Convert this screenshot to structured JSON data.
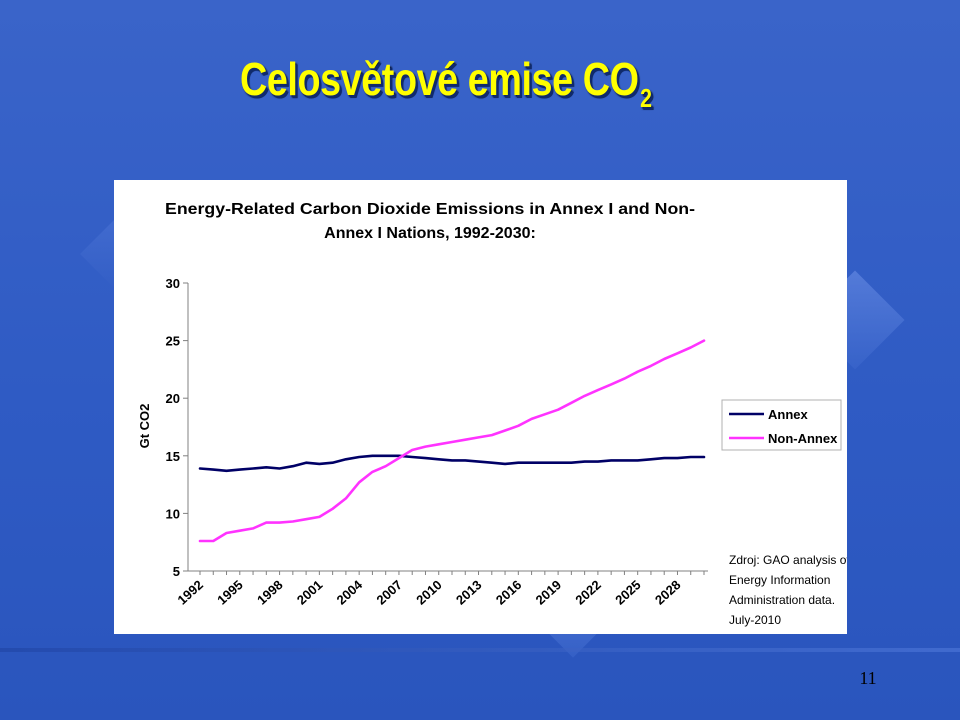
{
  "slide": {
    "title_main": "Celosvětové emise CO",
    "title_sub": "2",
    "page_number": "11"
  },
  "chart_data": {
    "type": "line",
    "title_line1": "Energy-Related Carbon Dioxide Emissions in Annex I and Non-",
    "title_line2": "Annex I Nations, 1992-2030:",
    "ylabel": "Gt CO2",
    "xlabel": "",
    "ylim": [
      5,
      30
    ],
    "yticks": [
      5,
      10,
      15,
      20,
      25,
      30
    ],
    "xtick_labels": [
      "1992",
      "1995",
      "1998",
      "2001",
      "2004",
      "2007",
      "2010",
      "2013",
      "2016",
      "2019",
      "2022",
      "2025",
      "2028"
    ],
    "x": [
      1992,
      1993,
      1994,
      1995,
      1996,
      1997,
      1998,
      1999,
      2000,
      2001,
      2002,
      2003,
      2004,
      2005,
      2006,
      2007,
      2008,
      2009,
      2010,
      2011,
      2012,
      2013,
      2014,
      2015,
      2016,
      2017,
      2018,
      2019,
      2020,
      2021,
      2022,
      2023,
      2024,
      2025,
      2026,
      2027,
      2028,
      2029,
      2030
    ],
    "series": [
      {
        "name": "Annex",
        "color": "#000066",
        "values": [
          13.9,
          13.8,
          13.7,
          13.8,
          13.9,
          14.0,
          13.9,
          14.1,
          14.4,
          14.3,
          14.4,
          14.7,
          14.9,
          15.0,
          15.0,
          15.0,
          14.9,
          14.8,
          14.7,
          14.6,
          14.6,
          14.5,
          14.4,
          14.3,
          14.4,
          14.4,
          14.4,
          14.4,
          14.4,
          14.5,
          14.5,
          14.6,
          14.6,
          14.6,
          14.7,
          14.8,
          14.8,
          14.9,
          14.9
        ]
      },
      {
        "name": "Non-Annex",
        "color": "#ff33ff",
        "values": [
          7.6,
          7.6,
          8.3,
          8.5,
          8.7,
          9.2,
          9.2,
          9.3,
          9.5,
          9.7,
          10.4,
          11.3,
          12.7,
          13.6,
          14.1,
          14.8,
          15.5,
          15.8,
          16.0,
          16.2,
          16.4,
          16.6,
          16.8,
          17.2,
          17.6,
          18.2,
          18.6,
          19.0,
          19.6,
          20.2,
          20.7,
          21.2,
          21.7,
          22.3,
          22.8,
          23.4,
          23.9,
          24.4,
          25.0
        ]
      }
    ],
    "legend_position": "right",
    "grid": false,
    "source_note": [
      "Zdroj: GAO analysis of",
      "Energy Information",
      "Administration data.",
      "July-2010"
    ]
  }
}
